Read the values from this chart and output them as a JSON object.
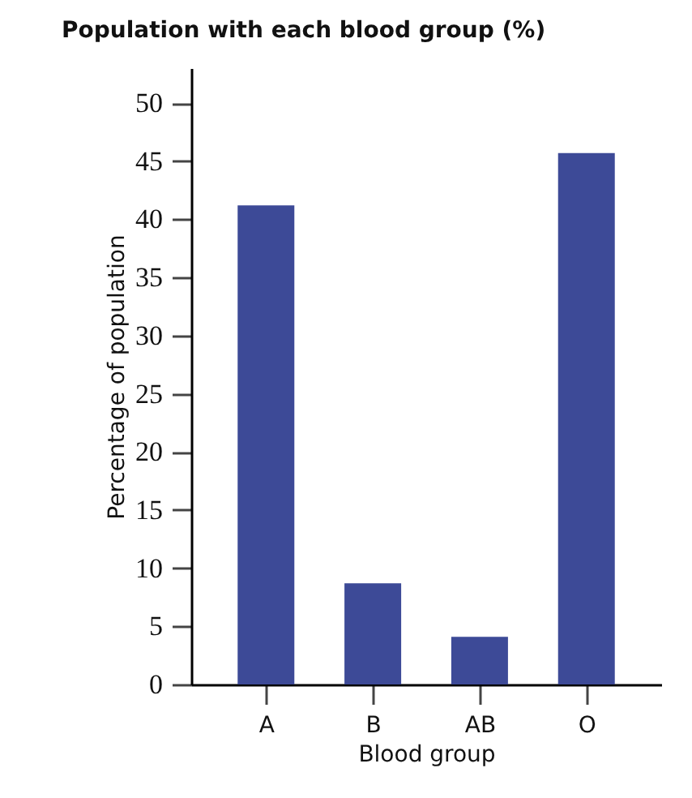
{
  "chart_data": {
    "type": "bar",
    "title": "Population with each blood group (%)",
    "xlabel": "Blood group",
    "ylabel": "Percentage of population",
    "categories": [
      "A",
      "B",
      "AB",
      "O"
    ],
    "values": [
      41.2,
      8.7,
      4.1,
      45.7
    ],
    "color": "#3d4a97",
    "ylim": [
      0,
      53
    ],
    "yticks": [
      0,
      5,
      10,
      15,
      20,
      25,
      30,
      35,
      40,
      45,
      50
    ],
    "grid": false
  }
}
